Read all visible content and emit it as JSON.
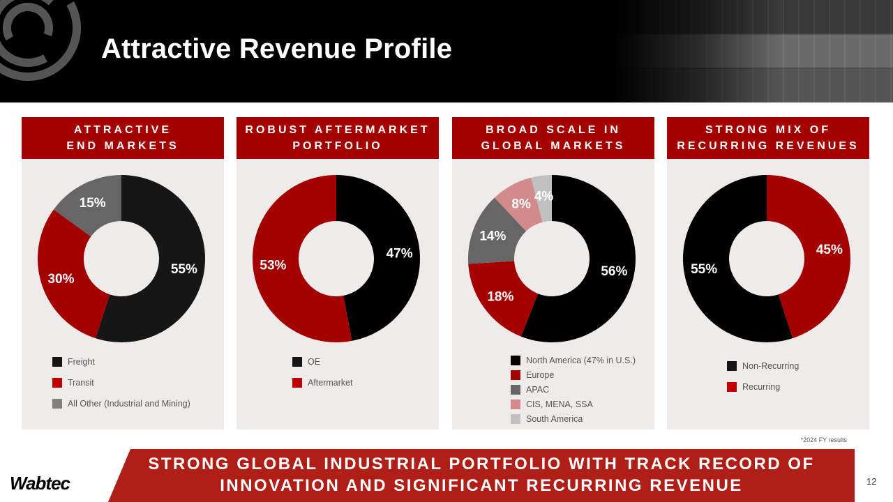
{
  "header": {
    "title": "Attractive Revenue Profile"
  },
  "panels": [
    {
      "heading": "ATTRACTIVE\nEND MARKETS"
    },
    {
      "heading": "ROBUST AFTERMARKET\nPORTFOLIO"
    },
    {
      "heading": "BROAD SCALE IN\nGLOBAL MARKETS"
    },
    {
      "heading": "STRONG MIX OF\nRECURRING REVENUES"
    }
  ],
  "chart_data": [
    {
      "type": "pie",
      "title": "Attractive End Markets",
      "categories": [
        "Freight",
        "Transit",
        "All Other (Industrial and Mining)"
      ],
      "values": [
        55,
        30,
        15
      ],
      "labels": [
        "55%",
        "30%",
        "15%"
      ],
      "colors": [
        "#161616",
        "#a50000",
        "#666666"
      ],
      "legend_colors": [
        "#161616",
        "#c00000",
        "#808080"
      ],
      "donut": true
    },
    {
      "type": "pie",
      "title": "Robust Aftermarket Portfolio",
      "categories": [
        "OE",
        "Aftermarket"
      ],
      "values": [
        47,
        53
      ],
      "labels": [
        "47%",
        "53%"
      ],
      "colors": [
        "#000000",
        "#a50000"
      ],
      "legend_colors": [
        "#161616",
        "#c00000"
      ],
      "donut": true
    },
    {
      "type": "pie",
      "title": "Broad Scale in Global Markets",
      "categories": [
        "North America (47% in U.S.)",
        "Europe",
        "APAC",
        "CIS, MENA, SSA",
        "South America"
      ],
      "values": [
        56,
        18,
        14,
        8,
        4
      ],
      "labels": [
        "56%",
        "18%",
        "14%",
        "8%",
        "4%"
      ],
      "colors": [
        "#000000",
        "#a50000",
        "#666666",
        "#d38a8a",
        "#c0c0c0"
      ],
      "legend_colors": [
        "#0a0000",
        "#a50000",
        "#666666",
        "#d38a8a",
        "#c0c0c0"
      ],
      "donut": true
    },
    {
      "type": "pie",
      "title": "Strong Mix of Recurring Revenues",
      "categories": [
        "Recurring",
        "Non-Recurring"
      ],
      "values": [
        45,
        55
      ],
      "labels": [
        "45%",
        "55%"
      ],
      "colors": [
        "#a50000",
        "#000000"
      ],
      "legend_order": [
        "Non-Recurring",
        "Recurring"
      ],
      "legend_colors": [
        "#161616",
        "#c00000"
      ],
      "donut": true
    }
  ],
  "footnote": "*2024 FY results",
  "banner": {
    "text": "STRONG GLOBAL INDUSTRIAL PORTFOLIO WITH TRACK RECORD OF\nINNOVATION AND SIGNIFICANT RECURRING REVENUE"
  },
  "brand": "Wabtec",
  "page_number": "12"
}
